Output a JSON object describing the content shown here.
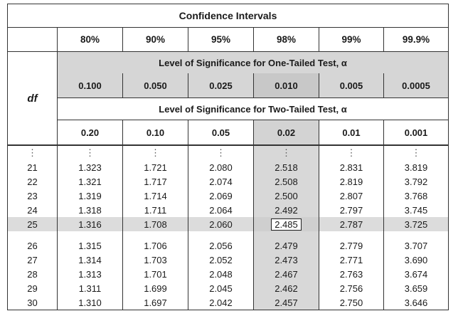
{
  "title": "Confidence Intervals",
  "confidence_levels": [
    "80%",
    "90%",
    "95%",
    "98%",
    "99%",
    "99.9%"
  ],
  "df_label": "df",
  "one_tailed_title": "Level of Significance for One-Tailed Test, α",
  "one_tailed_values": [
    "0.100",
    "0.050",
    "0.025",
    "0.010",
    "0.005",
    "0.0005"
  ],
  "two_tailed_title": "Level of Significance for Two-Tailed Test, α",
  "two_tailed_values": [
    "0.20",
    "0.10",
    "0.05",
    "0.02",
    "0.01",
    "0.001"
  ],
  "ellipsis": "⋮",
  "rows_a": [
    {
      "df": "21",
      "vals": [
        "1.323",
        "1.721",
        "2.080",
        "2.518",
        "2.831",
        "3.819"
      ]
    },
    {
      "df": "22",
      "vals": [
        "1.321",
        "1.717",
        "2.074",
        "2.508",
        "2.819",
        "3.792"
      ]
    },
    {
      "df": "23",
      "vals": [
        "1.319",
        "1.714",
        "2.069",
        "2.500",
        "2.807",
        "3.768"
      ]
    },
    {
      "df": "24",
      "vals": [
        "1.318",
        "1.711",
        "2.064",
        "2.492",
        "2.797",
        "3.745"
      ]
    },
    {
      "df": "25",
      "vals": [
        "1.316",
        "1.708",
        "2.060",
        "2.485",
        "2.787",
        "3.725"
      ]
    }
  ],
  "rows_b": [
    {
      "df": "26",
      "vals": [
        "1.315",
        "1.706",
        "2.056",
        "2.479",
        "2.779",
        "3.707"
      ]
    },
    {
      "df": "27",
      "vals": [
        "1.314",
        "1.703",
        "2.052",
        "2.473",
        "2.771",
        "3.690"
      ]
    },
    {
      "df": "28",
      "vals": [
        "1.313",
        "1.701",
        "2.048",
        "2.467",
        "2.763",
        "3.674"
      ]
    },
    {
      "df": "29",
      "vals": [
        "1.311",
        "1.699",
        "2.045",
        "2.462",
        "2.756",
        "3.659"
      ]
    },
    {
      "df": "30",
      "vals": [
        "1.310",
        "1.697",
        "2.042",
        "2.457",
        "2.750",
        "3.646"
      ]
    }
  ],
  "highlight_color": "#d6d6d6"
}
